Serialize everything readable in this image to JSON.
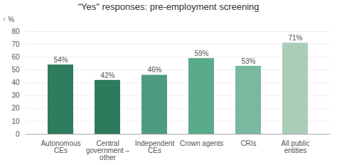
{
  "chart_data": {
    "type": "bar",
    "title": "\"Yes\" responses: pre-employment screening",
    "ylabel": "%",
    "categories": [
      "Autonomous\nCEs",
      "Central\ngovernment –\nother",
      "Independent\nCEs",
      "Crown agents",
      "CRIs",
      "All public\nentities"
    ],
    "values": [
      54,
      42,
      46,
      59,
      53,
      71
    ],
    "value_labels": [
      "54%",
      "42%",
      "46%",
      "59%",
      "53%",
      "71%"
    ],
    "colors": [
      "#2e7d5e",
      "#2d7a5c",
      "#4e9c80",
      "#5aaa8c",
      "#7ab8a0",
      "#aacdb8"
    ],
    "data_labels": true,
    "ylim": [
      0,
      80
    ],
    "yticks": [
      0,
      10,
      20,
      30,
      40,
      50,
      60,
      70,
      80
    ],
    "grid": true
  }
}
